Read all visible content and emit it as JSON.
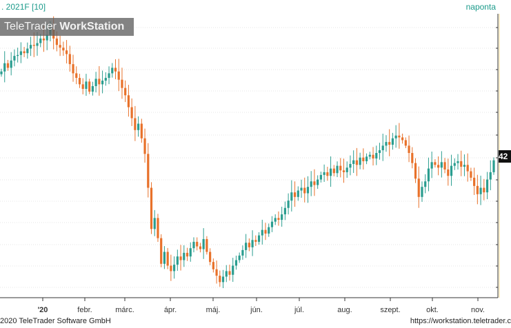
{
  "header": {
    "title": ". 2021F [10]",
    "period": "naponta"
  },
  "logo": {
    "text_light": "TeleTrader ",
    "text_bold": "WorkStation"
  },
  "footer": {
    "left": "2020 TeleTrader Software GmbH",
    "right": "https://workstation.teletrader.c"
  },
  "price_marker": {
    "label": "42"
  },
  "colors": {
    "up": "#2a9d8f",
    "down": "#e8712a",
    "grid": "#cccccc",
    "accent": "#1a9a8a"
  },
  "chart_data": {
    "type": "candlestick",
    "x_tick_labels": [
      "'20",
      "febr.",
      "márc.",
      "ápr.",
      "máj.",
      "jún.",
      "júl.",
      "aug.",
      "szept.",
      "okt.",
      "nov."
    ],
    "grid": true,
    "closes": [
      51.2,
      52.1,
      51.6,
      52.4,
      52.9,
      53.0,
      53.4,
      53.2,
      53.7,
      54.1,
      54.0,
      54.3,
      54.8,
      54.6,
      55.2,
      55.9,
      54.8,
      54.1,
      53.8,
      53.5,
      53.1,
      52.0,
      51.0,
      50.5,
      49.8,
      49.3,
      50.1,
      49.0,
      49.6,
      50.4,
      49.8,
      50.2,
      50.5,
      51.0,
      51.6,
      51.2,
      50.3,
      49.4,
      48.6,
      47.3,
      46.1,
      44.8,
      45.5,
      43.9,
      42.2,
      38.5,
      34.0,
      35.2,
      33.0,
      30.2,
      31.5,
      30.0,
      29.4,
      30.1,
      31.0,
      30.6,
      31.4,
      31.0,
      31.9,
      32.6,
      32.1,
      31.8,
      32.9,
      31.5,
      30.4,
      29.6,
      28.9,
      28.2,
      28.8,
      29.4,
      29.0,
      30.0,
      30.6,
      31.1,
      31.7,
      32.5,
      32.0,
      32.8,
      32.6,
      33.3,
      33.9,
      33.5,
      34.2,
      34.8,
      35.2,
      35.0,
      35.6,
      36.3,
      37.1,
      38.0,
      37.5,
      38.2,
      38.5,
      37.9,
      38.6,
      39.2,
      38.8,
      39.4,
      39.9,
      40.2,
      39.8,
      40.6,
      40.1,
      40.9,
      40.4,
      40.2,
      40.7,
      41.1,
      41.5,
      41.0,
      41.8,
      41.4,
      41.9,
      42.1,
      41.7,
      42.3,
      42.6,
      43.1,
      43.5,
      43.2,
      43.9,
      44.2,
      44.0,
      43.7,
      43.1,
      42.3,
      41.2,
      39.5,
      37.5,
      38.6,
      39.2,
      40.6,
      41.3,
      41.0,
      40.7,
      41.3,
      40.5,
      39.8,
      40.9,
      41.2,
      41.4,
      40.8,
      41.0,
      40.3,
      39.6,
      38.7,
      37.8,
      38.5,
      38.0,
      39.4,
      40.2,
      41.5
    ],
    "ylim": [
      26.5,
      57.5
    ]
  }
}
